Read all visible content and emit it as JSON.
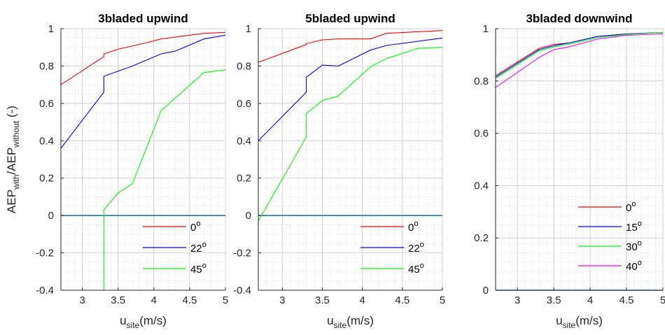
{
  "ylabel": {
    "p1": "AEP",
    "s1": "with",
    "p2": "/AEP",
    "s2": "without",
    "p3": " (-)"
  },
  "xlabel": {
    "p1": "u",
    "s1": "site",
    "p2": "(m/s)"
  },
  "chart_data": [
    {
      "type": "line",
      "title": "3bladed upwind",
      "xlim": [
        2.7,
        5
      ],
      "ylim": [
        -0.4,
        1
      ],
      "xticks": [
        3,
        3.5,
        4,
        4.5,
        5
      ],
      "xticklabels": [
        "3",
        "3.5",
        "4",
        "4.5",
        "5"
      ],
      "yticks": [
        -0.4,
        -0.2,
        0,
        0.2,
        0.4,
        0.6,
        0.8,
        1
      ],
      "yticklabels": [
        "-0.4",
        "-0.2",
        "0",
        "0.2",
        "0.4",
        "0.6",
        "0.8",
        "1"
      ],
      "grid": true,
      "legend_position": "bottom-right",
      "baseline": {
        "y": 0,
        "color": "#1f77b4"
      },
      "series": [
        {
          "name": "0",
          "color": "#ff0000",
          "x": [
            2.7,
            3.3,
            3.3,
            3.5,
            3.9,
            4.1,
            4.5,
            4.7,
            5.0
          ],
          "y": [
            0.7,
            0.85,
            0.865,
            0.89,
            0.925,
            0.945,
            0.965,
            0.975,
            0.98
          ]
        },
        {
          "name": "22",
          "color": "#0000ff",
          "x": [
            2.7,
            3.3,
            3.3,
            3.7,
            4.1,
            4.3,
            4.7,
            5.0
          ],
          "y": [
            0.36,
            0.66,
            0.745,
            0.8,
            0.865,
            0.88,
            0.945,
            0.965
          ]
        },
        {
          "name": "45",
          "color": "#00ff00",
          "x": [
            3.3,
            3.3,
            3.5,
            3.7,
            4.1,
            4.7,
            5.0
          ],
          "y": [
            -0.4,
            0.03,
            0.12,
            0.17,
            0.56,
            0.765,
            0.78
          ]
        }
      ]
    },
    {
      "type": "line",
      "title": "5bladed upwind",
      "xlim": [
        2.7,
        5
      ],
      "ylim": [
        -0.4,
        1
      ],
      "xticks": [
        3,
        3.5,
        4,
        4.5,
        5
      ],
      "xticklabels": [
        "3",
        "3.5",
        "4",
        "4.5",
        "5"
      ],
      "yticks": [
        -0.4,
        -0.2,
        0,
        0.2,
        0.4,
        0.6,
        0.8,
        1
      ],
      "yticklabels": [
        "-0.4",
        "-0.2",
        "0",
        "0.2",
        "0.4",
        "0.6",
        "0.8",
        "1"
      ],
      "grid": true,
      "legend_position": "bottom-right",
      "baseline": {
        "y": 0,
        "color": "#1f77b4"
      },
      "series": [
        {
          "name": "0",
          "color": "#ff0000",
          "x": [
            2.7,
            3.3,
            3.3,
            3.5,
            3.7,
            4.1,
            4.3,
            5.0
          ],
          "y": [
            0.82,
            0.915,
            0.92,
            0.94,
            0.945,
            0.945,
            0.975,
            0.99
          ]
        },
        {
          "name": "22",
          "color": "#0000ff",
          "x": [
            2.7,
            3.3,
            3.3,
            3.5,
            3.7,
            4.1,
            4.3,
            5.0
          ],
          "y": [
            0.4,
            0.66,
            0.74,
            0.805,
            0.8,
            0.885,
            0.91,
            0.95
          ]
        },
        {
          "name": "45",
          "color": "#00ff00",
          "x": [
            2.7,
            3.3,
            3.3,
            3.5,
            3.7,
            4.1,
            4.3,
            4.7,
            5.0
          ],
          "y": [
            -0.03,
            0.42,
            0.545,
            0.615,
            0.64,
            0.795,
            0.84,
            0.895,
            0.9
          ]
        }
      ]
    },
    {
      "type": "line",
      "title": "3bladed downwind",
      "xlim": [
        2.7,
        5
      ],
      "ylim": [
        0,
        1
      ],
      "xticks": [
        3,
        3.5,
        4,
        4.5,
        5
      ],
      "xticklabels": [
        "3",
        "3.5",
        "4",
        "4.5",
        "5"
      ],
      "yticks": [
        0,
        0.2,
        0.4,
        0.6,
        0.8,
        1
      ],
      "yticklabels": [
        "0",
        "0.2",
        "0.4",
        "0.6",
        "0.8",
        "1"
      ],
      "grid": true,
      "legend_position": "bottom-right",
      "baseline": {
        "y": 0,
        "color": "#1f77b4"
      },
      "series": [
        {
          "name": "0",
          "color": "#ff0000",
          "x": [
            2.7,
            3.3,
            3.5,
            3.7,
            4.1,
            4.5,
            5.0
          ],
          "y": [
            0.82,
            0.925,
            0.94,
            0.945,
            0.97,
            0.98,
            0.985
          ]
        },
        {
          "name": "15",
          "color": "#0000ff",
          "x": [
            2.7,
            3.3,
            3.5,
            3.7,
            4.1,
            4.5,
            5.0
          ],
          "y": [
            0.815,
            0.92,
            0.935,
            0.945,
            0.97,
            0.98,
            0.985
          ]
        },
        {
          "name": "30",
          "color": "#00ff00",
          "x": [
            2.7,
            3.3,
            3.5,
            3.7,
            4.1,
            4.5,
            5.0
          ],
          "y": [
            0.81,
            0.915,
            0.93,
            0.94,
            0.965,
            0.978,
            0.985
          ]
        },
        {
          "name": "40",
          "color": "#ff00ff",
          "x": [
            2.7,
            3.3,
            3.5,
            3.7,
            4.1,
            4.5,
            5.0
          ],
          "y": [
            0.775,
            0.89,
            0.92,
            0.93,
            0.96,
            0.975,
            0.98
          ]
        }
      ]
    }
  ]
}
